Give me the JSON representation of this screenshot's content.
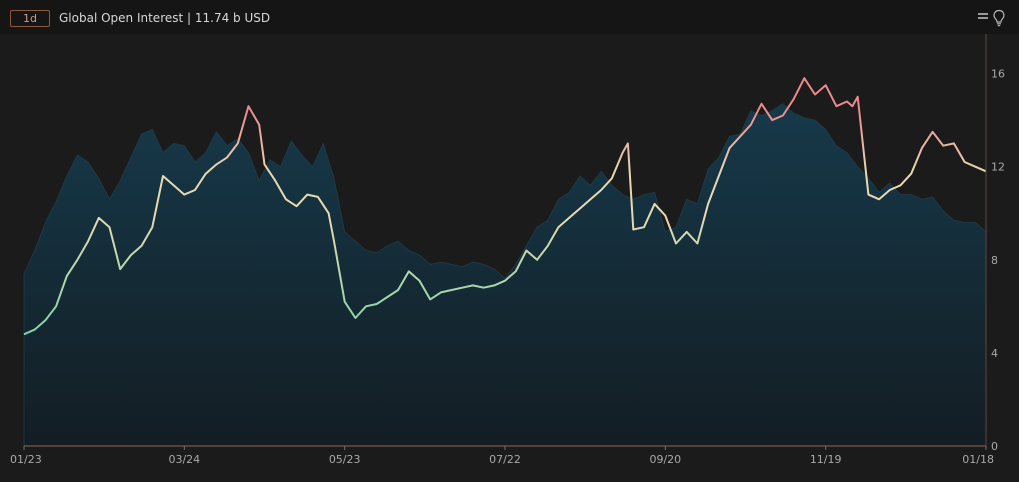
{
  "header": {
    "interval": "1d",
    "title": "Global Open Interest | 11.74 b USD"
  },
  "icons": {
    "menu": "hamburger-icon",
    "light": "lightbulb-icon"
  },
  "colors": {
    "background": "#1b1b1b",
    "area_fill": "#13303c",
    "line_low": "#7ad6a3",
    "line_mid": "#e9d9b2",
    "line_high": "#ea8a8a",
    "interval_border": "#8a5a3c"
  },
  "chart_data": {
    "type": "line",
    "title": "Global Open Interest | 11.74 b USD",
    "xlabel": "",
    "ylabel": "",
    "ylim": [
      0,
      17.7
    ],
    "y_ticks": [
      0,
      4,
      8,
      12,
      16
    ],
    "y_ticks_label": [
      "0",
      "4",
      "8",
      "12",
      "16"
    ],
    "x_ticks": [
      "01/23",
      "03/24",
      "05/23",
      "07/22",
      "09/20",
      "11/19",
      "01/18"
    ],
    "x_tick_index": [
      0,
      60,
      120,
      180,
      240,
      300,
      360
    ],
    "grid": false,
    "series": [
      {
        "name": "",
        "style": "line",
        "x": [
          0,
          4,
          8,
          12,
          16,
          20,
          24,
          28,
          32,
          36,
          40,
          44,
          48,
          52,
          56,
          60,
          64,
          68,
          72,
          76,
          80,
          84,
          88,
          90,
          94,
          98,
          102,
          106,
          110,
          114,
          116,
          120,
          124,
          128,
          132,
          136,
          140,
          144,
          148,
          152,
          156,
          160,
          164,
          168,
          172,
          176,
          180,
          184,
          188,
          192,
          196,
          200,
          204,
          208,
          212,
          216,
          220,
          224,
          226,
          228,
          232,
          236,
          240,
          244,
          248,
          252,
          256,
          260,
          264,
          268,
          272,
          276,
          280,
          284,
          288,
          292,
          296,
          300,
          304,
          308,
          310,
          312,
          316,
          320,
          324,
          328,
          332,
          336,
          340,
          344,
          348,
          352,
          356,
          360
        ],
        "y": [
          4.8,
          5.0,
          5.4,
          6.0,
          7.3,
          8.0,
          8.8,
          9.8,
          9.4,
          7.6,
          8.2,
          8.6,
          9.4,
          11.6,
          11.2,
          10.8,
          11.0,
          11.7,
          12.1,
          12.4,
          13.0,
          14.6,
          13.8,
          12.1,
          11.4,
          10.6,
          10.3,
          10.8,
          10.7,
          10.0,
          8.8,
          6.2,
          5.5,
          6.0,
          6.1,
          6.4,
          6.7,
          7.5,
          7.1,
          6.3,
          6.6,
          6.7,
          6.8,
          6.9,
          6.8,
          6.9,
          7.1,
          7.5,
          8.4,
          8.0,
          8.6,
          9.4,
          9.8,
          10.2,
          10.6,
          11.0,
          11.5,
          12.6,
          13.0,
          9.3,
          9.4,
          10.4,
          9.9,
          8.7,
          9.2,
          8.7,
          10.4,
          11.6,
          12.8,
          13.3,
          13.8,
          14.7,
          14.0,
          14.2,
          14.9,
          15.8,
          15.1,
          15.5,
          14.6,
          14.8,
          14.6,
          15.0,
          10.8,
          10.6,
          11.0,
          11.2,
          11.7,
          12.8,
          13.5,
          12.9,
          13.0,
          12.2,
          12.0,
          11.8
        ]
      },
      {
        "name": "",
        "style": "area",
        "x": [
          0,
          4,
          8,
          12,
          16,
          20,
          24,
          28,
          32,
          36,
          40,
          44,
          48,
          52,
          56,
          60,
          64,
          68,
          72,
          76,
          80,
          84,
          88,
          92,
          96,
          100,
          104,
          108,
          112,
          116,
          120,
          124,
          128,
          132,
          136,
          140,
          144,
          148,
          152,
          156,
          160,
          164,
          168,
          172,
          176,
          180,
          184,
          188,
          192,
          196,
          200,
          204,
          208,
          212,
          216,
          220,
          224,
          228,
          232,
          236,
          240,
          244,
          248,
          252,
          256,
          260,
          264,
          268,
          272,
          276,
          280,
          284,
          288,
          292,
          296,
          300,
          304,
          308,
          312,
          316,
          320,
          324,
          328,
          332,
          336,
          340,
          344,
          348,
          352,
          356,
          360
        ],
        "y": [
          7.4,
          8.4,
          9.6,
          10.5,
          11.6,
          12.5,
          12.2,
          11.5,
          10.6,
          11.4,
          12.4,
          13.4,
          13.6,
          12.6,
          13.0,
          12.9,
          12.2,
          12.6,
          13.5,
          12.9,
          13.2,
          12.6,
          11.4,
          12.3,
          12.0,
          13.1,
          12.5,
          12.0,
          13.0,
          11.5,
          9.2,
          8.8,
          8.4,
          8.3,
          8.6,
          8.8,
          8.4,
          8.2,
          7.8,
          7.9,
          7.8,
          7.7,
          7.9,
          7.8,
          7.6,
          7.2,
          7.8,
          8.6,
          9.4,
          9.7,
          10.6,
          10.9,
          11.6,
          11.2,
          11.8,
          11.2,
          10.8,
          10.6,
          10.8,
          10.9,
          9.2,
          9.4,
          10.6,
          10.4,
          11.9,
          12.4,
          13.3,
          13.4,
          14.4,
          14.2,
          14.4,
          14.7,
          14.3,
          14.1,
          14.0,
          13.6,
          12.9,
          12.6,
          12.0,
          11.5,
          10.9,
          11.3,
          10.8,
          10.8,
          10.6,
          10.7,
          10.1,
          9.7,
          9.6,
          9.6,
          9.2
        ]
      }
    ]
  }
}
